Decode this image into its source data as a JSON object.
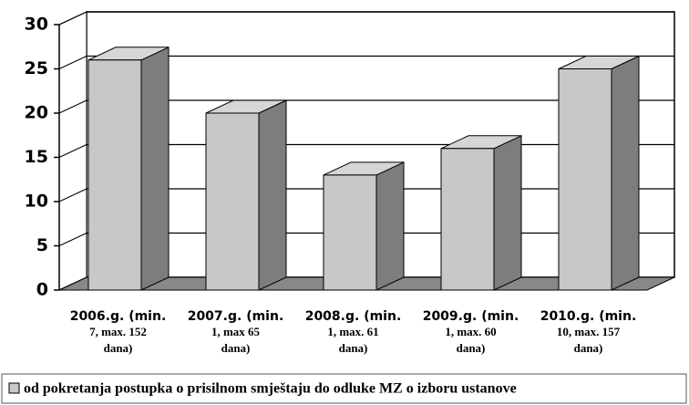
{
  "chart_data": {
    "type": "bar3d",
    "categories": [
      [
        "2006.g. (min.",
        "7, max. 152",
        "dana)"
      ],
      [
        "2007.g. (min.",
        "1, max 65",
        "dana)"
      ],
      [
        "2008.g. (min.",
        "1, max. 61",
        "dana)"
      ],
      [
        "2009.g. (min.",
        "1, max. 60",
        "dana)"
      ],
      [
        "2010.g. (min.",
        "10, max. 157",
        "dana)"
      ]
    ],
    "series": [
      {
        "name": "od pokretanja postupka o prisilnom smještaju do odluke MZ o izboru ustanove",
        "color": "#c8c8c8",
        "values": [
          26,
          20,
          13,
          16,
          25
        ]
      }
    ],
    "ylim": [
      0,
      30
    ],
    "yticks": [
      0,
      5,
      10,
      15,
      20,
      25,
      30
    ],
    "grid": true,
    "legend": "bottom"
  }
}
